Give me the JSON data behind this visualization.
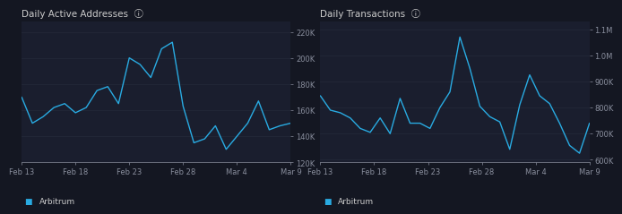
{
  "bg_color": "#141722",
  "panel_bg": "#1a1e2e",
  "line_color": "#29abe2",
  "text_color": "#8a8f9e",
  "title_color": "#cccccc",
  "grid_color": "#252a3a",
  "chart1_title": "Daily Active Addresses",
  "chart2_title": "Daily Transactions",
  "x_labels": [
    "Feb 13",
    "Feb 18",
    "Feb 23",
    "Feb 28",
    "Mar 4",
    "Mar 9"
  ],
  "chart1_y": [
    170000,
    150000,
    155000,
    162000,
    165000,
    158000,
    162000,
    175000,
    178000,
    165000,
    200000,
    195000,
    185000,
    207000,
    212000,
    163000,
    135000,
    138000,
    148000,
    130000,
    140000,
    150000,
    167000,
    145000,
    148000,
    150000
  ],
  "chart2_y": [
    845000,
    790000,
    780000,
    760000,
    720000,
    705000,
    760000,
    700000,
    835000,
    740000,
    740000,
    720000,
    800000,
    860000,
    1070000,
    950000,
    805000,
    765000,
    745000,
    640000,
    810000,
    925000,
    845000,
    815000,
    740000,
    655000,
    625000,
    740000
  ],
  "chart1_ylim": [
    120000,
    228000
  ],
  "chart2_ylim": [
    590000,
    1130000
  ],
  "chart1_yticks": [
    120000,
    140000,
    160000,
    180000,
    200000,
    220000
  ],
  "chart2_yticks": [
    600000,
    700000,
    800000,
    900000,
    1000000,
    1100000
  ],
  "legend_label": "Arbitrum"
}
